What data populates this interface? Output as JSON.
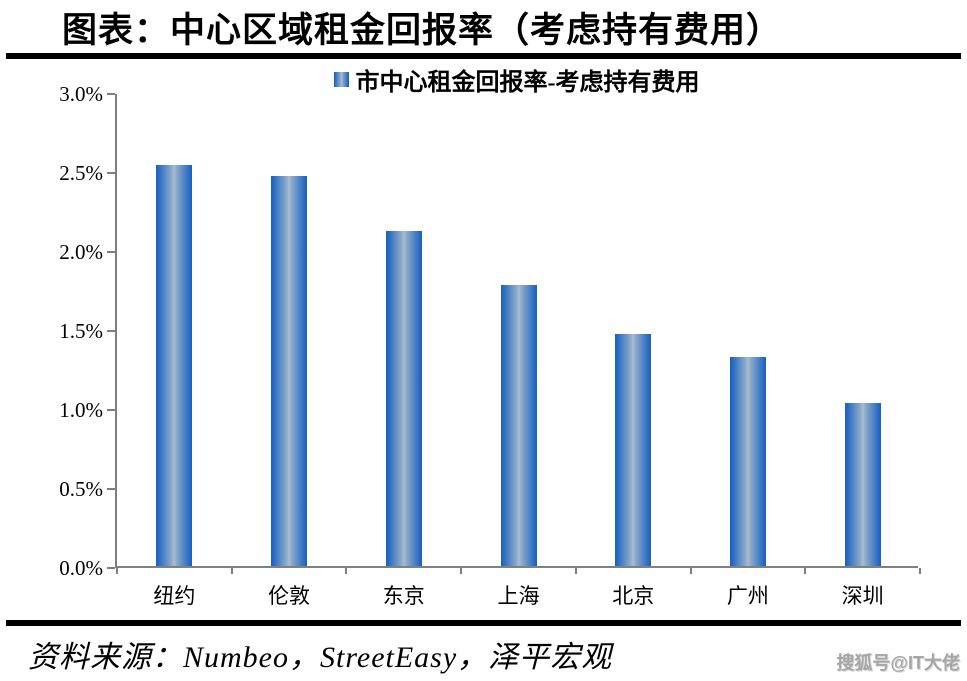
{
  "page": {
    "title": "图表：中心区域租金回报率（考虑持有费用）",
    "source_text": "资料来源：Numbeo，StreetEasy，泽平宏观",
    "watermark": "搜狐号@IT大佬"
  },
  "chart_data": {
    "type": "bar",
    "title": "图表：中心区域租金回报率（考虑持有费用）",
    "legend": [
      "市中心租金回报率-考虑持有费用"
    ],
    "legend_position": "top-center",
    "categories": [
      "纽约",
      "伦敦",
      "东京",
      "上海",
      "北京",
      "广州",
      "深圳"
    ],
    "values": [
      2.54,
      2.47,
      2.12,
      1.78,
      1.47,
      1.32,
      1.03
    ],
    "unit": "%",
    "xlabel": "",
    "ylabel": "",
    "ylim": [
      0,
      3.0
    ],
    "y_ticks": [
      "0.0%",
      "0.5%",
      "1.0%",
      "1.5%",
      "2.0%",
      "2.5%",
      "3.0%"
    ],
    "grid": false,
    "colors": {
      "bar_edge": "#1a5fbe",
      "bar_center": "#a9bcd1",
      "axis": "#808080",
      "text": "#000000",
      "watermark": "#a6a6a6"
    }
  }
}
